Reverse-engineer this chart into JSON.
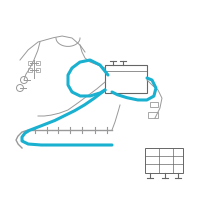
{
  "background_color": "#ffffff",
  "gray": "#999999",
  "dark_gray": "#666666",
  "blue": "#1ab0d0",
  "fig_width": 2.0,
  "fig_height": 2.0,
  "dpi": 100
}
